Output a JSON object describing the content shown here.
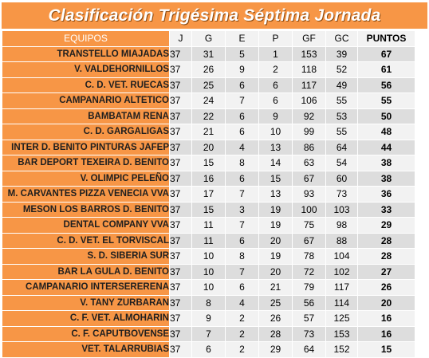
{
  "title": "Clasificación Trigésima Séptima Jornada",
  "headers": {
    "team": "EQUIPOS",
    "j": "J",
    "g": "G",
    "e": "E",
    "p": "P",
    "gf": "GF",
    "gc": "GC",
    "pts": "PUNTOS"
  },
  "rows": [
    {
      "team": "TRANSTELLO MIAJADAS",
      "j": "37",
      "g": "31",
      "e": "5",
      "p": "1",
      "gf": "153",
      "gc": "39",
      "pts": "67"
    },
    {
      "team": "V. VALDEHORNILLOS",
      "j": "37",
      "g": "26",
      "e": "9",
      "p": "2",
      "gf": "118",
      "gc": "52",
      "pts": "61"
    },
    {
      "team": "C. D. VET. RUECAS",
      "j": "37",
      "g": "25",
      "e": "6",
      "p": "6",
      "gf": "117",
      "gc": "49",
      "pts": "56"
    },
    {
      "team": "CAMPANARIO ALTETICO",
      "j": "37",
      "g": "24",
      "e": "7",
      "p": "6",
      "gf": "106",
      "gc": "55",
      "pts": "55"
    },
    {
      "team": "BAMBATAM RENA",
      "j": "37",
      "g": "22",
      "e": "6",
      "p": "9",
      "gf": "92",
      "gc": "53",
      "pts": "50"
    },
    {
      "team": "C. D. GARGALIGAS",
      "j": "37",
      "g": "21",
      "e": "6",
      "p": "10",
      "gf": "99",
      "gc": "55",
      "pts": "48"
    },
    {
      "team": "INTER D. BENITO PINTURAS JAFEP",
      "j": "37",
      "g": "20",
      "e": "4",
      "p": "13",
      "gf": "86",
      "gc": "64",
      "pts": "44"
    },
    {
      "team": "BAR DEPORT TEXEIRA  D. BENITO",
      "j": "37",
      "g": "15",
      "e": "8",
      "p": "14",
      "gf": "63",
      "gc": "54",
      "pts": "38"
    },
    {
      "team": "V. OLIMPIC PELEÑO",
      "j": "37",
      "g": "16",
      "e": "6",
      "p": "15",
      "gf": "67",
      "gc": "60",
      "pts": "38"
    },
    {
      "team": "M. CARVANTES PIZZA VENECIA VVA",
      "j": "37",
      "g": "17",
      "e": "7",
      "p": "13",
      "gf": "93",
      "gc": "73",
      "pts": "36"
    },
    {
      "team": "MESON LOS BARROS  D. BENITO",
      "j": "37",
      "g": "15",
      "e": "3",
      "p": "19",
      "gf": "100",
      "gc": "103",
      "pts": "33"
    },
    {
      "team": "DENTAL COMPANY VVA",
      "j": "37",
      "g": "11",
      "e": "7",
      "p": "19",
      "gf": "75",
      "gc": "98",
      "pts": "29"
    },
    {
      "team": "C. D. VET. EL TORVISCAL",
      "j": "37",
      "g": "11",
      "e": "6",
      "p": "20",
      "gf": "67",
      "gc": "88",
      "pts": "28"
    },
    {
      "team": "S. D. SIBERIA SUR",
      "j": "37",
      "g": "10",
      "e": "8",
      "p": "19",
      "gf": "78",
      "gc": "104",
      "pts": "28"
    },
    {
      "team": "BAR LA GULA D. BENITO",
      "j": "37",
      "g": "10",
      "e": "7",
      "p": "20",
      "gf": "72",
      "gc": "102",
      "pts": "27"
    },
    {
      "team": "CAMPANARIO INTERSERERENA",
      "j": "37",
      "g": "10",
      "e": "6",
      "p": "21",
      "gf": "79",
      "gc": "117",
      "pts": "26"
    },
    {
      "team": "V. TANY ZURBARAN",
      "j": "37",
      "g": "8",
      "e": "4",
      "p": "25",
      "gf": "56",
      "gc": "114",
      "pts": "20"
    },
    {
      "team": "C. F. VET. ALMOHARIN",
      "j": "37",
      "g": "9",
      "e": "2",
      "p": "26",
      "gf": "57",
      "gc": "125",
      "pts": "16"
    },
    {
      "team": "C. F. CAPUTBOVENSE",
      "j": "37",
      "g": "7",
      "e": "2",
      "p": "28",
      "gf": "73",
      "gc": "153",
      "pts": "16"
    },
    {
      "team": "VET. TALARRUBIAS",
      "j": "37",
      "g": "6",
      "e": "2",
      "p": "29",
      "gf": "64",
      "gc": "152",
      "pts": "15"
    }
  ],
  "colors": {
    "accent": "#f79646",
    "row_dark": "#dddddd",
    "row_light": "#f2f2f2"
  }
}
